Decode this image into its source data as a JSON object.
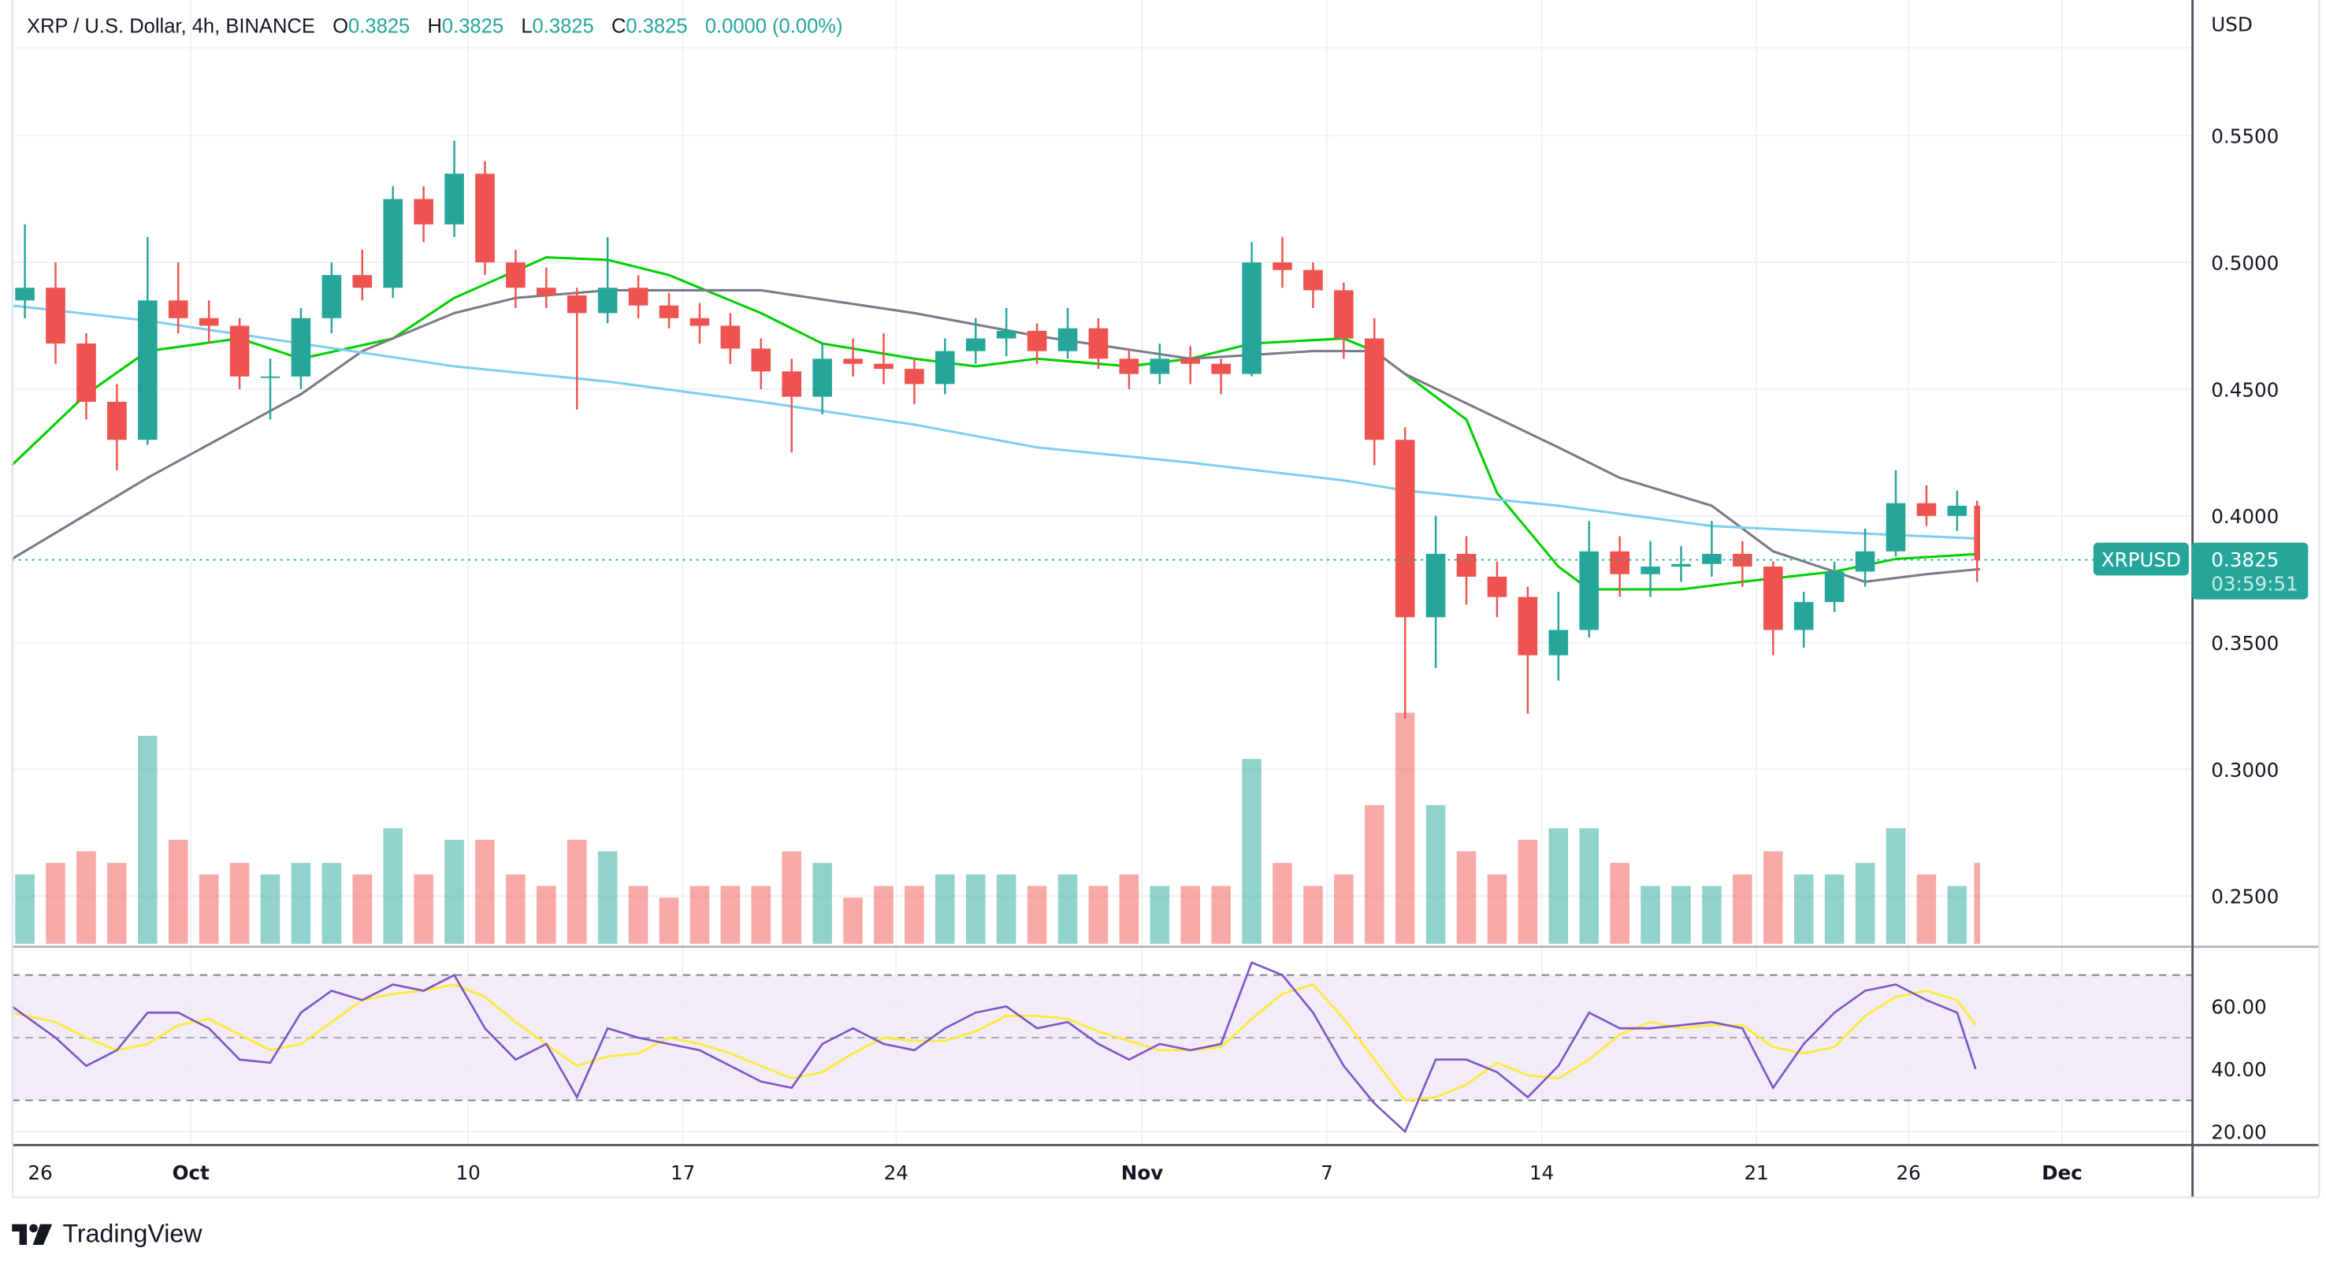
{
  "legend": {
    "symbol_title": "XRP / U.S. Dollar, 4h, BINANCE",
    "o_label": "O",
    "o_value": "0.3825",
    "h_label": "H",
    "h_value": "0.3825",
    "l_label": "L",
    "l_value": "0.3825",
    "c_label": "C",
    "c_value": "0.3825",
    "change": "0.0000 (0.00%)"
  },
  "price_axis": {
    "currency": "USD",
    "ticks": [
      "0.5500",
      "0.5000",
      "0.4500",
      "0.4000",
      "0.3500",
      "0.3000",
      "0.2500"
    ]
  },
  "last_price": {
    "symbol": "XRPUSD",
    "price": "0.3825",
    "countdown": "03:59:51",
    "color": "#26a69a"
  },
  "rsi_axis": {
    "ticks": [
      "60.00",
      "40.00",
      "20.00"
    ]
  },
  "time_axis": {
    "ticks": [
      "26",
      "Oct",
      "10",
      "17",
      "24",
      "Nov",
      "7",
      "14",
      "21",
      "26",
      "Dec"
    ]
  },
  "branding": {
    "logo_text": "TradingView"
  },
  "colors": {
    "up": "#26a69a",
    "down": "#ef5350",
    "ma_fast": "#00d000",
    "ma_slow": "#787b86",
    "ma_long": "#7fcdf0",
    "rsi": "#7e57c2",
    "rsi_ma": "#ffeb3b",
    "rsi_band": "#ede7f6"
  },
  "chart_data": {
    "type": "candlestick",
    "interval": "4h",
    "ylim": [
      0.2285,
      0.5735
    ],
    "rsi_levels": [
      70,
      50,
      30
    ],
    "columns": [
      "date",
      "open",
      "high",
      "low",
      "close",
      "volume_rel",
      "rsi",
      "rsi_ma"
    ],
    "daily": [
      [
        "Sep 25",
        0.485,
        0.515,
        0.478,
        0.49,
        30,
        60,
        58
      ],
      [
        "Sep 26",
        0.49,
        0.5,
        0.46,
        0.468,
        35,
        50,
        55
      ],
      [
        "Sep 27",
        0.468,
        0.472,
        0.438,
        0.445,
        40,
        41,
        50
      ],
      [
        "Sep 28",
        0.445,
        0.452,
        0.418,
        0.43,
        35,
        46,
        46
      ],
      [
        "Sep 29",
        0.43,
        0.51,
        0.428,
        0.485,
        90,
        58,
        48
      ],
      [
        "Sep 30",
        0.485,
        0.5,
        0.472,
        0.478,
        45,
        58,
        54
      ],
      [
        "Oct 1",
        0.478,
        0.485,
        0.468,
        0.475,
        30,
        53,
        56
      ],
      [
        "Oct 2",
        0.475,
        0.478,
        0.45,
        0.455,
        35,
        43,
        51
      ],
      [
        "Oct 3",
        0.455,
        0.462,
        0.438,
        0.455,
        30,
        42,
        46
      ],
      [
        "Oct 4",
        0.455,
        0.482,
        0.45,
        0.478,
        35,
        58,
        48
      ],
      [
        "Oct 5",
        0.478,
        0.5,
        0.472,
        0.495,
        35,
        65,
        55
      ],
      [
        "Oct 6",
        0.495,
        0.505,
        0.485,
        0.49,
        30,
        62,
        62
      ],
      [
        "Oct 7",
        0.49,
        0.53,
        0.486,
        0.525,
        50,
        67,
        64
      ],
      [
        "Oct 8",
        0.525,
        0.53,
        0.508,
        0.515,
        30,
        65,
        65
      ],
      [
        "Oct 9",
        0.515,
        0.548,
        0.51,
        0.535,
        45,
        70,
        67
      ],
      [
        "Oct 10",
        0.535,
        0.54,
        0.495,
        0.5,
        45,
        53,
        63
      ],
      [
        "Oct 11",
        0.5,
        0.505,
        0.482,
        0.49,
        30,
        43,
        55
      ],
      [
        "Oct 12",
        0.49,
        0.498,
        0.482,
        0.487,
        25,
        48,
        48
      ],
      [
        "Oct 13",
        0.487,
        0.49,
        0.442,
        0.48,
        45,
        31,
        41
      ],
      [
        "Oct 14",
        0.48,
        0.51,
        0.476,
        0.49,
        40,
        53,
        44
      ],
      [
        "Oct 15",
        0.49,
        0.495,
        0.478,
        0.483,
        25,
        50,
        45
      ],
      [
        "Oct 16",
        0.483,
        0.488,
        0.474,
        0.478,
        20,
        48,
        50
      ],
      [
        "Oct 17",
        0.478,
        0.484,
        0.468,
        0.475,
        25,
        46,
        48
      ],
      [
        "Oct 18",
        0.475,
        0.48,
        0.46,
        0.466,
        25,
        41,
        45
      ],
      [
        "Oct 19",
        0.466,
        0.47,
        0.45,
        0.457,
        25,
        36,
        41
      ],
      [
        "Oct 20",
        0.457,
        0.462,
        0.425,
        0.447,
        40,
        34,
        37
      ],
      [
        "Oct 21",
        0.447,
        0.468,
        0.44,
        0.462,
        35,
        48,
        39
      ],
      [
        "Oct 22",
        0.462,
        0.47,
        0.455,
        0.46,
        20,
        53,
        45
      ],
      [
        "Oct 23",
        0.46,
        0.472,
        0.452,
        0.458,
        25,
        48,
        50
      ],
      [
        "Oct 24",
        0.458,
        0.462,
        0.444,
        0.452,
        25,
        46,
        49
      ],
      [
        "Oct 25",
        0.452,
        0.47,
        0.448,
        0.465,
        30,
        53,
        49
      ],
      [
        "Oct 26",
        0.465,
        0.478,
        0.46,
        0.47,
        30,
        58,
        52
      ],
      [
        "Oct 27",
        0.47,
        0.482,
        0.463,
        0.473,
        30,
        60,
        57
      ],
      [
        "Oct 28",
        0.473,
        0.476,
        0.46,
        0.465,
        25,
        53,
        57
      ],
      [
        "Oct 29",
        0.465,
        0.482,
        0.462,
        0.474,
        30,
        55,
        56
      ],
      [
        "Oct 30",
        0.474,
        0.478,
        0.458,
        0.462,
        25,
        48,
        52
      ],
      [
        "Oct 31",
        0.462,
        0.466,
        0.45,
        0.456,
        30,
        43,
        49
      ],
      [
        "Nov 1",
        0.456,
        0.468,
        0.452,
        0.462,
        25,
        48,
        46
      ],
      [
        "Nov 2",
        0.462,
        0.467,
        0.452,
        0.46,
        25,
        46,
        46
      ],
      [
        "Nov 3",
        0.46,
        0.462,
        0.448,
        0.456,
        25,
        48,
        47
      ],
      [
        "Nov 4",
        0.456,
        0.508,
        0.455,
        0.5,
        80,
        74,
        56
      ],
      [
        "Nov 5",
        0.5,
        0.51,
        0.49,
        0.497,
        35,
        70,
        64
      ],
      [
        "Nov 6",
        0.497,
        0.5,
        0.482,
        0.489,
        25,
        58,
        67
      ],
      [
        "Nov 7",
        0.489,
        0.492,
        0.462,
        0.47,
        30,
        41,
        56
      ],
      [
        "Nov 8",
        0.47,
        0.478,
        0.42,
        0.43,
        60,
        29,
        43
      ],
      [
        "Nov 9",
        0.43,
        0.435,
        0.32,
        0.36,
        100,
        20,
        30
      ],
      [
        "Nov 10",
        0.36,
        0.4,
        0.34,
        0.385,
        60,
        43,
        31
      ],
      [
        "Nov 11",
        0.385,
        0.392,
        0.365,
        0.376,
        40,
        43,
        35
      ],
      [
        "Nov 12",
        0.376,
        0.382,
        0.36,
        0.368,
        30,
        39,
        42
      ],
      [
        "Nov 13",
        0.368,
        0.372,
        0.322,
        0.345,
        45,
        31,
        38
      ],
      [
        "Nov 14",
        0.345,
        0.37,
        0.335,
        0.355,
        50,
        41,
        37
      ],
      [
        "Nov 15",
        0.355,
        0.398,
        0.352,
        0.386,
        50,
        58,
        43
      ],
      [
        "Nov 16",
        0.386,
        0.392,
        0.368,
        0.377,
        35,
        53,
        51
      ],
      [
        "Nov 17",
        0.377,
        0.39,
        0.368,
        0.38,
        25,
        53,
        55
      ],
      [
        "Nov 18",
        0.38,
        0.388,
        0.374,
        0.381,
        25,
        54,
        53
      ],
      [
        "Nov 19",
        0.381,
        0.398,
        0.376,
        0.385,
        25,
        55,
        54
      ],
      [
        "Nov 20",
        0.385,
        0.39,
        0.372,
        0.38,
        30,
        53,
        54
      ],
      [
        "Nov 21",
        0.38,
        0.382,
        0.345,
        0.355,
        40,
        34,
        47
      ],
      [
        "Nov 22",
        0.355,
        0.37,
        0.348,
        0.366,
        30,
        48,
        45
      ],
      [
        "Nov 23",
        0.366,
        0.382,
        0.362,
        0.378,
        30,
        58,
        47
      ],
      [
        "Nov 24",
        0.378,
        0.395,
        0.372,
        0.386,
        35,
        65,
        57
      ],
      [
        "Nov 25",
        0.386,
        0.418,
        0.384,
        0.405,
        50,
        67,
        63
      ],
      [
        "Nov 26",
        0.405,
        0.412,
        0.396,
        0.4,
        30,
        62,
        65
      ],
      [
        "Nov 27",
        0.4,
        0.41,
        0.394,
        0.404,
        25,
        58,
        62
      ],
      [
        "Nov 28",
        0.404,
        0.406,
        0.374,
        0.3825,
        35,
        40,
        54
      ]
    ],
    "moving_averages": [
      {
        "color_key": "ma_fast",
        "points": [
          [
            "Sep 25",
            0.42
          ],
          [
            "Sep 27",
            0.448
          ],
          [
            "Sep 29",
            0.465
          ],
          [
            "Oct 2",
            0.47
          ],
          [
            "Oct 4",
            0.462
          ],
          [
            "Oct 7",
            0.47
          ],
          [
            "Oct 9",
            0.486
          ],
          [
            "Oct 12",
            0.502
          ],
          [
            "Oct 14",
            0.501
          ],
          [
            "Oct 16",
            0.495
          ],
          [
            "Oct 19",
            0.48
          ],
          [
            "Oct 21",
            0.468
          ],
          [
            "Oct 24",
            0.462
          ],
          [
            "Oct 26",
            0.459
          ],
          [
            "Oct 28",
            0.462
          ],
          [
            "Oct 31",
            0.459
          ],
          [
            "Nov 2",
            0.462
          ],
          [
            "Nov 4",
            0.468
          ],
          [
            "Nov 7",
            0.47
          ],
          [
            "Nov 8",
            0.465
          ],
          [
            "Nov 9",
            0.456
          ],
          [
            "Nov 11",
            0.438
          ],
          [
            "Nov 12",
            0.409
          ],
          [
            "Nov 14",
            0.38
          ],
          [
            "Nov 15",
            0.371
          ],
          [
            "Nov 18",
            0.371
          ],
          [
            "Nov 20",
            0.374
          ],
          [
            "Nov 23",
            0.378
          ],
          [
            "Nov 25",
            0.383
          ],
          [
            "Nov 28",
            0.385
          ]
        ]
      },
      {
        "color_key": "ma_slow",
        "points": [
          [
            "Sep 25",
            0.383
          ],
          [
            "Sep 29",
            0.415
          ],
          [
            "Oct 4",
            0.448
          ],
          [
            "Oct 6",
            0.465
          ],
          [
            "Oct 9",
            0.48
          ],
          [
            "Oct 11",
            0.486
          ],
          [
            "Oct 14",
            0.489
          ],
          [
            "Oct 19",
            0.489
          ],
          [
            "Oct 24",
            0.48
          ],
          [
            "Oct 28",
            0.471
          ],
          [
            "Nov 2",
            0.462
          ],
          [
            "Nov 6",
            0.465
          ],
          [
            "Nov 8",
            0.465
          ],
          [
            "Nov 9",
            0.456
          ],
          [
            "Nov 14",
            0.427
          ],
          [
            "Nov 16",
            0.415
          ],
          [
            "Nov 19",
            0.404
          ],
          [
            "Nov 21",
            0.386
          ],
          [
            "Nov 24",
            0.374
          ],
          [
            "Nov 26",
            0.377
          ],
          [
            "Nov 28",
            0.379
          ]
        ]
      },
      {
        "color_key": "ma_long",
        "points": [
          [
            "Sep 25",
            0.483
          ],
          [
            "Sep 29",
            0.477
          ],
          [
            "Oct 4",
            0.468
          ],
          [
            "Oct 9",
            0.459
          ],
          [
            "Oct 14",
            0.453
          ],
          [
            "Oct 19",
            0.445
          ],
          [
            "Oct 24",
            0.436
          ],
          [
            "Oct 28",
            0.427
          ],
          [
            "Nov 2",
            0.421
          ],
          [
            "Nov 7",
            0.414
          ],
          [
            "Nov 9",
            0.41
          ],
          [
            "Nov 14",
            0.404
          ],
          [
            "Nov 19",
            0.396
          ],
          [
            "Nov 24",
            0.393
          ],
          [
            "Nov 28",
            0.391
          ]
        ]
      }
    ]
  }
}
